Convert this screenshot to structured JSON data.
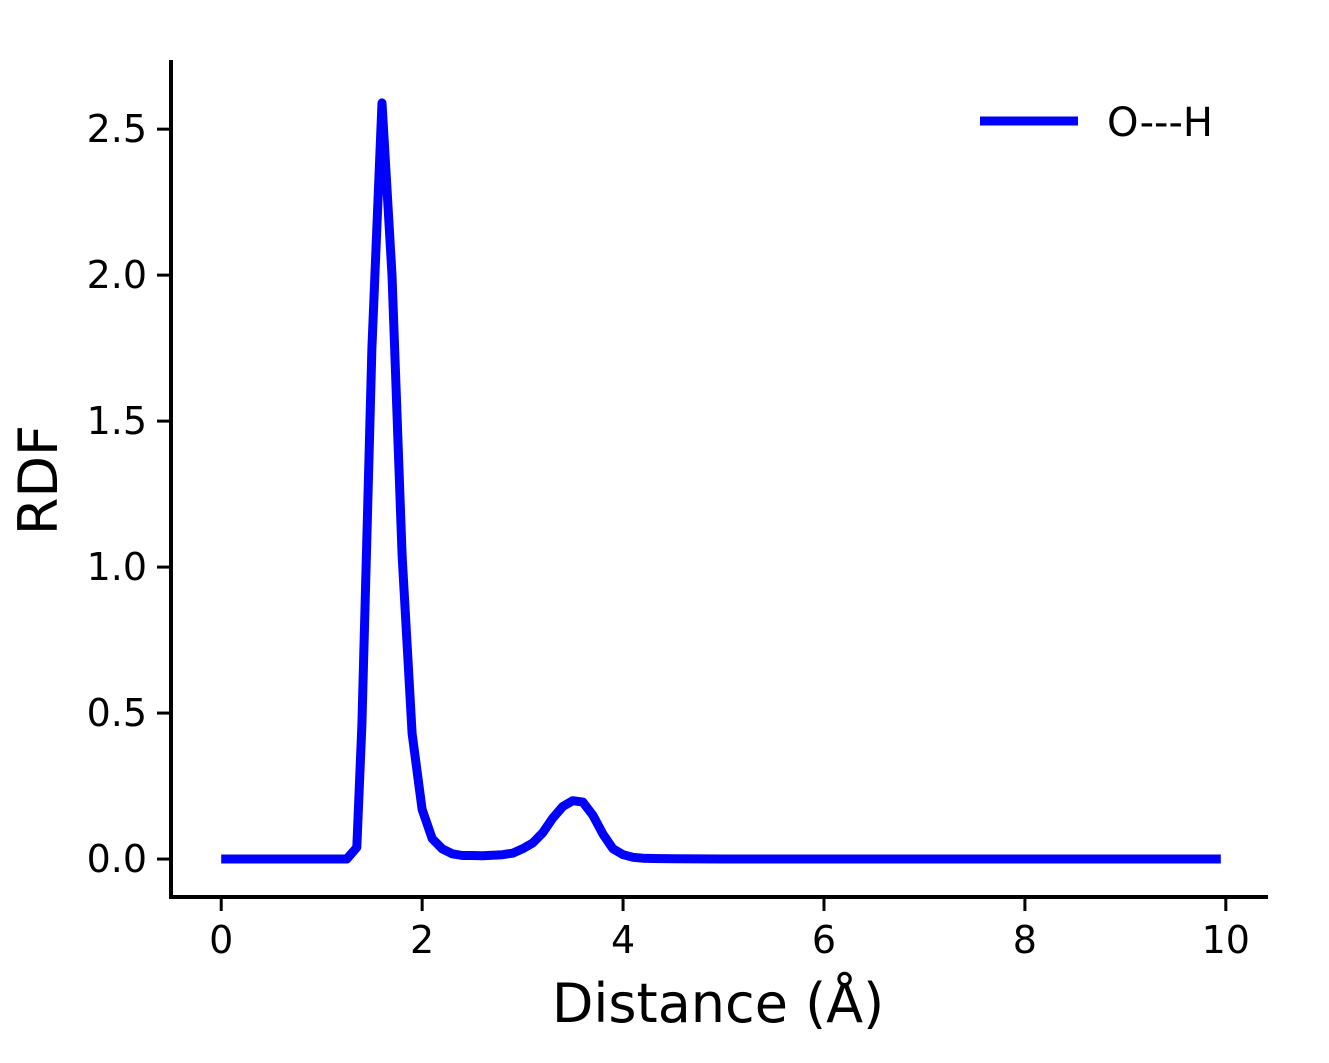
{
  "chart_data": {
    "type": "line",
    "title": "",
    "xlabel": "Distance (Å)",
    "ylabel": "RDF",
    "xlim": [
      -0.5,
      10.4
    ],
    "ylim": [
      -0.13,
      2.73
    ],
    "xticks": [
      0,
      2,
      4,
      6,
      8,
      10
    ],
    "xtick_labels": [
      "0",
      "2",
      "4",
      "6",
      "8",
      "10"
    ],
    "yticks": [
      0.0,
      0.5,
      1.0,
      1.5,
      2.0,
      2.5
    ],
    "ytick_labels": [
      "0.0",
      "0.5",
      "1.0",
      "1.5",
      "2.0",
      "2.5"
    ],
    "grid": false,
    "legend_position": "top-right",
    "series": [
      {
        "name": "O---H",
        "color": "#0000ff",
        "x": [
          0,
          0.2,
          0.4,
          0.6,
          0.8,
          1.0,
          1.2,
          1.25,
          1.35,
          1.4,
          1.5,
          1.6,
          1.7,
          1.8,
          1.9,
          2.0,
          2.1,
          2.2,
          2.3,
          2.4,
          2.5,
          2.6,
          2.7,
          2.8,
          2.9,
          3.0,
          3.1,
          3.2,
          3.3,
          3.4,
          3.5,
          3.6,
          3.7,
          3.8,
          3.9,
          4.0,
          4.1,
          4.2,
          4.3,
          4.5,
          5.0,
          6.0,
          7.0,
          8.0,
          9.0,
          9.95
        ],
        "values": [
          0,
          0,
          0,
          0,
          0,
          0,
          0,
          0,
          0.04,
          0.46,
          1.75,
          2.59,
          2.0,
          1.04,
          0.43,
          0.17,
          0.07,
          0.035,
          0.018,
          0.012,
          0.012,
          0.011,
          0.013,
          0.015,
          0.02,
          0.035,
          0.055,
          0.09,
          0.14,
          0.18,
          0.2,
          0.195,
          0.15,
          0.085,
          0.035,
          0.015,
          0.006,
          0.003,
          0.002,
          0.001,
          0,
          0,
          0,
          0,
          0,
          0
        ]
      }
    ]
  }
}
